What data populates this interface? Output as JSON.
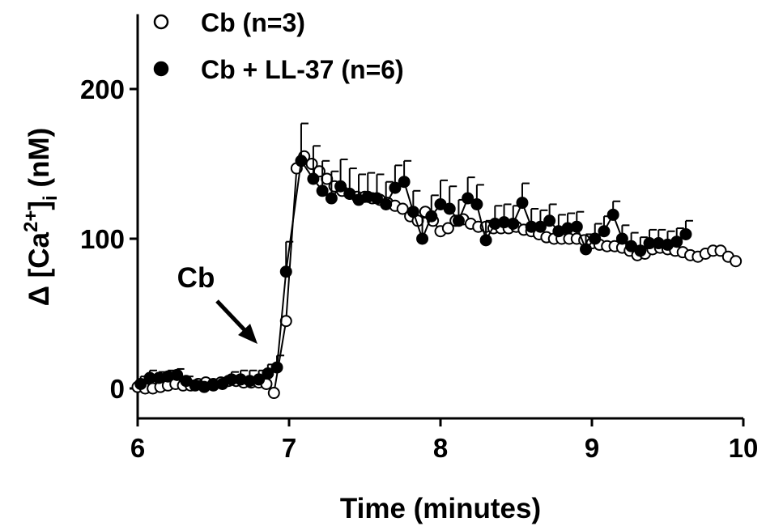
{
  "chart_data": {
    "type": "line",
    "xlabel": "Time (minutes)",
    "ylabel": [
      "Δ [Ca",
      "2+",
      "]",
      "i",
      " (nM)"
    ],
    "annotation": "Cb",
    "xlim": [
      6,
      10
    ],
    "xticks": [
      6,
      7,
      8,
      9,
      10
    ],
    "ylim": [
      -20,
      250
    ],
    "yticks": [
      0,
      100,
      200
    ],
    "legend": "top-left",
    "series": [
      {
        "name": "Cb (n=3)",
        "color": "#000000",
        "marker": "open",
        "x": [
          6.0,
          6.05,
          6.1,
          6.15,
          6.2,
          6.25,
          6.3,
          6.35,
          6.4,
          6.45,
          6.5,
          6.55,
          6.6,
          6.65,
          6.7,
          6.75,
          6.8,
          6.85,
          6.9,
          6.98,
          7.05,
          7.1,
          7.15,
          7.2,
          7.25,
          7.3,
          7.35,
          7.4,
          7.45,
          7.5,
          7.55,
          7.6,
          7.65,
          7.7,
          7.75,
          7.8,
          7.85,
          7.9,
          7.95,
          8.0,
          8.05,
          8.1,
          8.15,
          8.2,
          8.25,
          8.3,
          8.35,
          8.4,
          8.45,
          8.5,
          8.55,
          8.6,
          8.65,
          8.7,
          8.75,
          8.8,
          8.85,
          8.9,
          8.95,
          9.0,
          9.05,
          9.1,
          9.15,
          9.2,
          9.25,
          9.3,
          9.35,
          9.4,
          9.45,
          9.5,
          9.55,
          9.6,
          9.65,
          9.7,
          9.75,
          9.8,
          9.85,
          9.9,
          9.95
        ],
        "values": [
          1,
          0,
          0,
          1,
          2,
          3,
          2,
          2,
          3,
          4,
          3,
          4,
          5,
          5,
          4,
          4,
          4,
          3,
          -3,
          45,
          147,
          155,
          150,
          145,
          140,
          135,
          132,
          130,
          128,
          128,
          127,
          126,
          124,
          122,
          120,
          115,
          112,
          118,
          112,
          105,
          107,
          112,
          113,
          110,
          108,
          108,
          107,
          107,
          107,
          108,
          106,
          105,
          103,
          101,
          100,
          100,
          100,
          100,
          99,
          97,
          96,
          95,
          95,
          94,
          92,
          89,
          90,
          93,
          94,
          93,
          92,
          91,
          89,
          88,
          90,
          92,
          92,
          88,
          85
        ]
      },
      {
        "name": "Cb + LL-37 (n=6)",
        "color": "#000000",
        "marker": "filled",
        "x": [
          6.02,
          6.08,
          6.14,
          6.2,
          6.26,
          6.32,
          6.38,
          6.44,
          6.5,
          6.56,
          6.62,
          6.68,
          6.74,
          6.8,
          6.86,
          6.92,
          6.98,
          7.08,
          7.16,
          7.22,
          7.28,
          7.34,
          7.4,
          7.46,
          7.52,
          7.58,
          7.64,
          7.7,
          7.76,
          7.82,
          7.88,
          7.94,
          8.0,
          8.06,
          8.12,
          8.18,
          8.24,
          8.3,
          8.36,
          8.42,
          8.48,
          8.54,
          8.6,
          8.66,
          8.72,
          8.78,
          8.84,
          8.9,
          8.96,
          9.02,
          9.08,
          9.14,
          9.2,
          9.26,
          9.32,
          9.38,
          9.44,
          9.5,
          9.56,
          9.62
        ],
        "values": [
          3,
          7,
          7,
          8,
          9,
          5,
          2,
          1,
          2,
          3,
          6,
          6,
          5,
          6,
          10,
          14,
          78,
          152,
          140,
          132,
          127,
          135,
          130,
          126,
          128,
          127,
          123,
          134,
          138,
          118,
          100,
          115,
          123,
          120,
          112,
          127,
          123,
          99,
          110,
          111,
          110,
          124,
          108,
          108,
          112,
          105,
          107,
          108,
          93,
          100,
          105,
          116,
          100,
          95,
          92,
          97,
          97,
          96,
          98,
          103
        ],
        "errors": [
          5,
          5,
          4,
          4,
          4,
          3,
          3,
          3,
          3,
          4,
          5,
          6,
          7,
          6,
          6,
          8,
          20,
          25,
          22,
          20,
          18,
          18,
          17,
          17,
          16,
          16,
          15,
          15,
          14,
          14,
          14,
          14,
          16,
          15,
          14,
          14,
          13,
          13,
          12,
          12,
          12,
          13,
          12,
          11,
          11,
          11,
          10,
          10,
          10,
          10,
          10,
          9,
          9,
          9,
          9,
          9,
          9,
          9,
          9,
          9
        ]
      }
    ]
  }
}
